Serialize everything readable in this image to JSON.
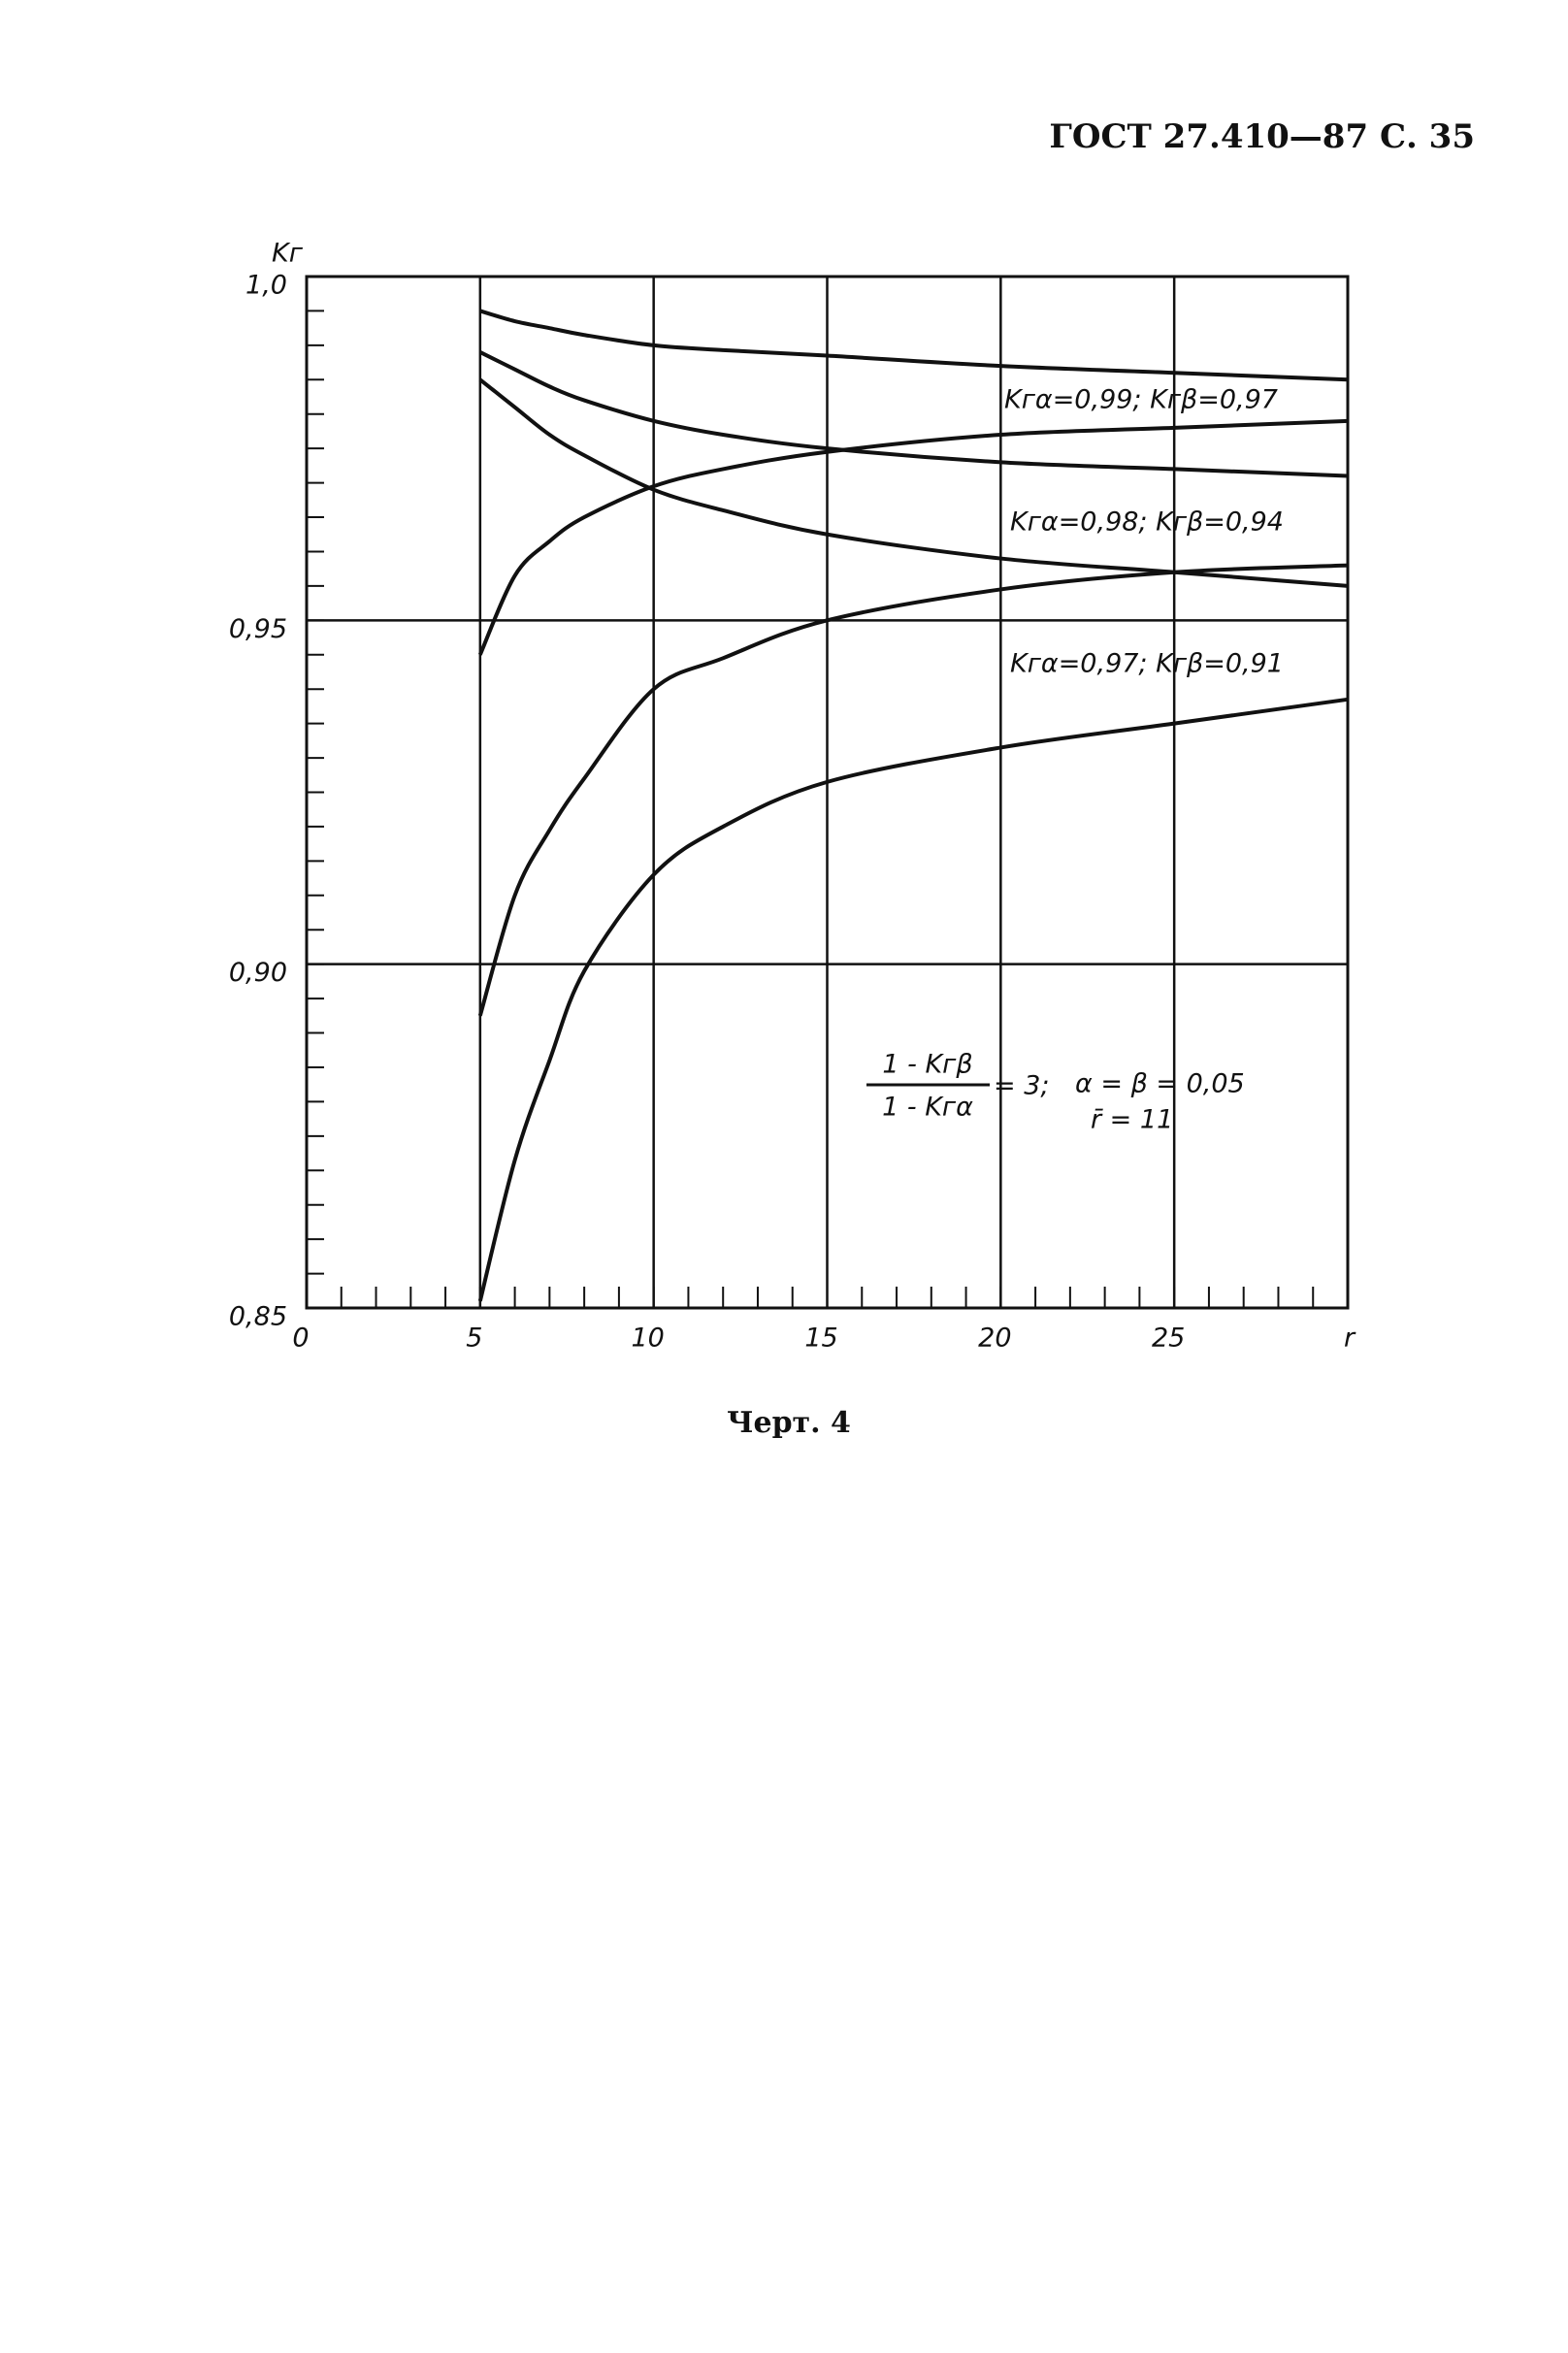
{
  "header": "ГОСТ 27.410—87 С. 35",
  "caption": "Черт. 4",
  "chart_data": {
    "type": "line",
    "y_label": "Kг",
    "x_label": "r",
    "x": [
      5,
      6,
      7,
      8,
      10,
      12,
      15,
      20,
      25,
      30
    ],
    "series": [
      {
        "color": "#111111",
        "values": [
          0.995,
          0.9935,
          0.9925,
          0.9915,
          0.99,
          0.9893,
          0.9885,
          0.987,
          0.986,
          0.985
        ]
      },
      {
        "color": "#111111",
        "values": [
          0.989,
          0.9865,
          0.984,
          0.982,
          0.979,
          0.977,
          0.975,
          0.973,
          0.972,
          0.971
        ]
      },
      {
        "color": "#111111",
        "values": [
          0.985,
          0.981,
          0.977,
          0.974,
          0.969,
          0.966,
          0.9625,
          0.959,
          0.957,
          0.955
        ]
      },
      {
        "color": "#111111",
        "values": [
          0.945,
          0.9565,
          0.9615,
          0.965,
          0.9695,
          0.972,
          0.9745,
          0.977,
          0.978,
          0.979
        ]
      },
      {
        "color": "#111111",
        "values": [
          0.8925,
          0.91,
          0.9195,
          0.927,
          0.94,
          0.9445,
          0.95,
          0.9545,
          0.957,
          0.958
        ]
      },
      {
        "color": "#111111",
        "values": [
          0.851,
          0.8715,
          0.886,
          0.899,
          0.913,
          0.92,
          0.9265,
          0.9315,
          0.935,
          0.9385
        ]
      }
    ],
    "annotations": [
      "Kгα=0,99;  Kгβ=0,97",
      "Kгα=0,98;  Kгβ=0,94",
      "Kгα=0,97;  Kгβ=0,91"
    ],
    "formula": {
      "numerator": "1 - Kгβ",
      "denominator": "1 - Kгα",
      "rhs": "= 3;",
      "condition": "α = β = 0,05",
      "mean": "r̄ = 11"
    },
    "xlim": [
      0,
      30
    ],
    "xticks": [
      0,
      5,
      10,
      15,
      20,
      25
    ],
    "ylim": [
      0.85,
      1.0
    ],
    "yticks": [
      {
        "value": 0.85,
        "label": "0,85"
      },
      {
        "value": 0.9,
        "label": "0,90"
      },
      {
        "value": 0.95,
        "label": "0,95"
      },
      {
        "value": 1.0,
        "label": "1,0"
      }
    ],
    "x_minor_step": 1,
    "y_minor_step": 0.005,
    "grid": true
  }
}
